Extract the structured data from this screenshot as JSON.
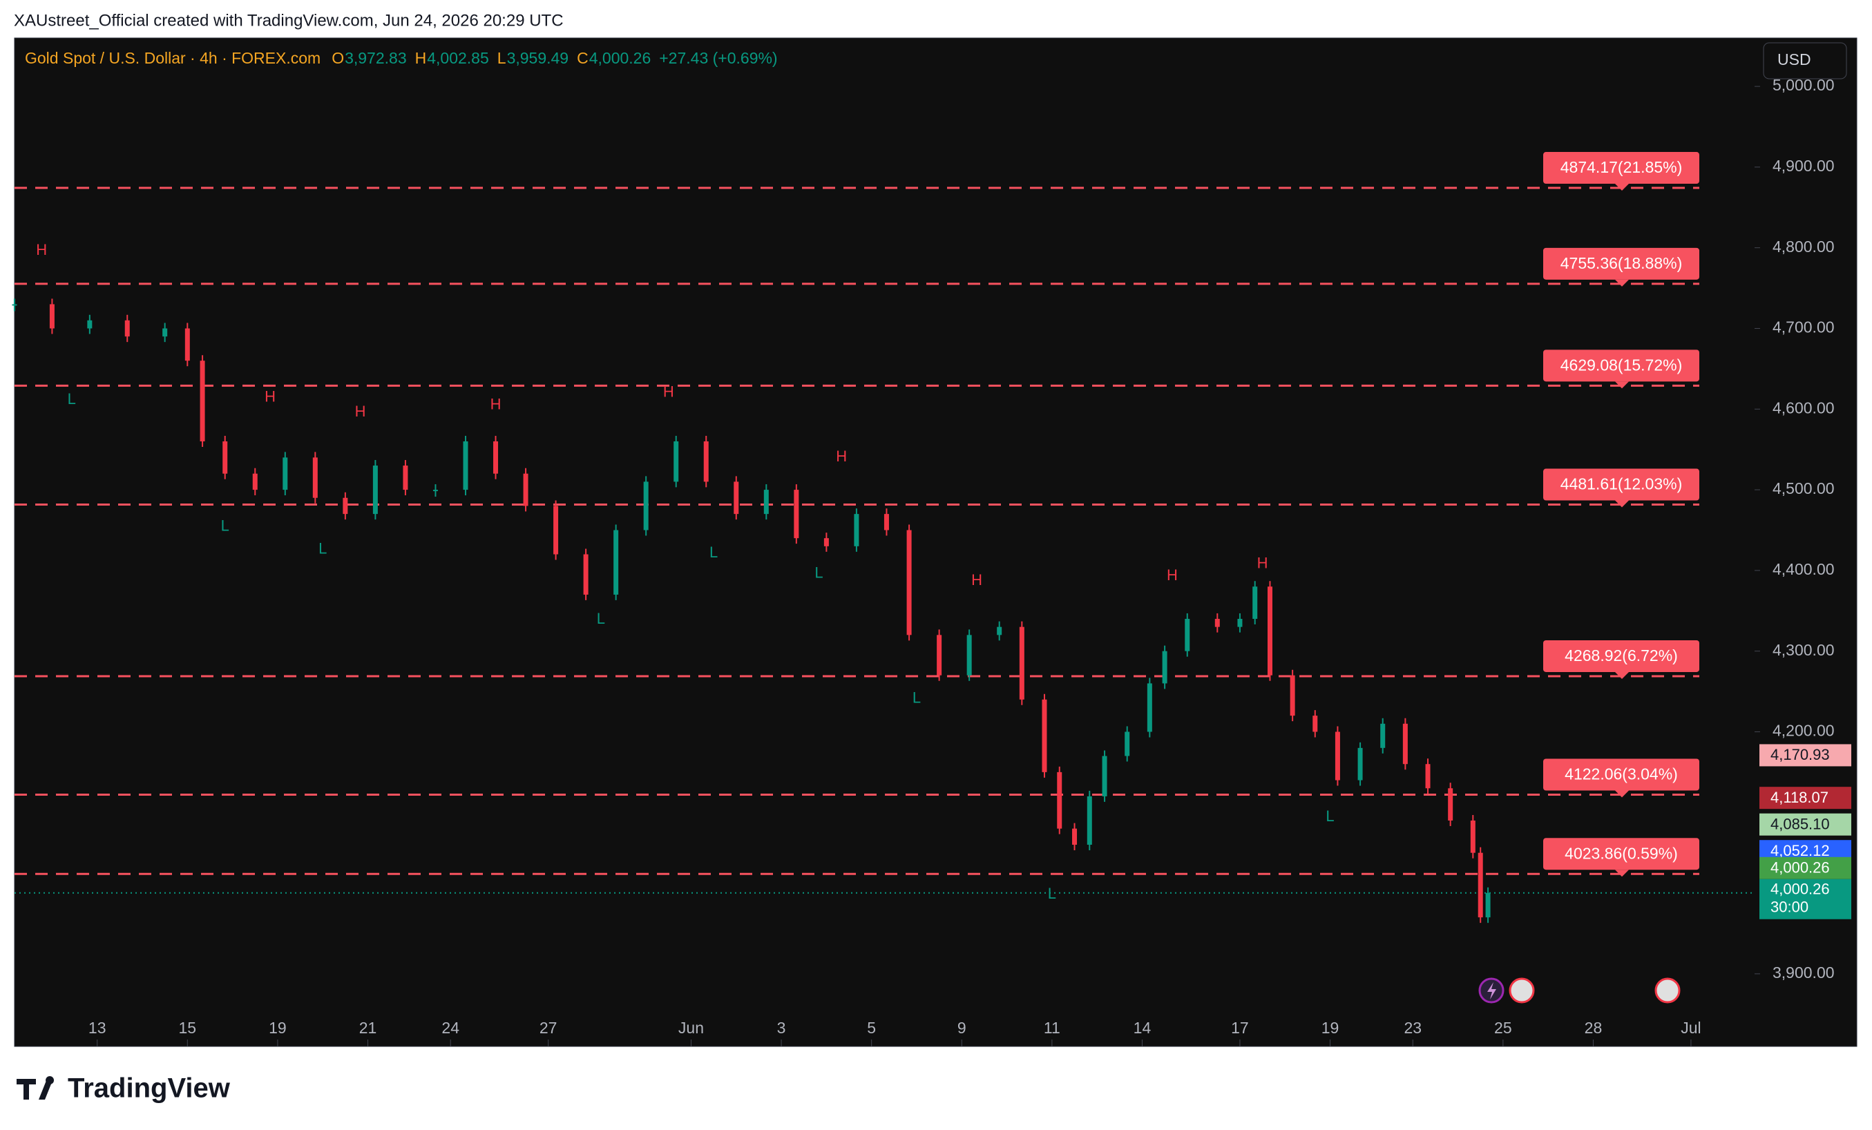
{
  "header": {
    "credit": "XAUstreet_Official created with TradingView.com, Jun 24, 2026 20:29 UTC"
  },
  "footer": {
    "brand": "TradingView"
  },
  "chart_data": {
    "type": "candlestick",
    "title": "Gold Spot / U.S. Dollar · 4h · FOREX.com",
    "currency": "USD",
    "legend": [
      {
        "key": "O",
        "value": {
          "value": 3972.83,
          "label": "3,972.83"
        }
      },
      {
        "key": "H",
        "value": {
          "value": 4002.85,
          "label": "4,002.85"
        }
      },
      {
        "key": "L",
        "value": {
          "value": 3959.49,
          "label": "3,959.49"
        }
      },
      {
        "key": "C",
        "value": {
          "value": 4000.26,
          "label": "4,000.26"
        }
      }
    ],
    "change": {
      "value": 27.43,
      "label": "+27.43 (+0.69%)"
    },
    "up_color": "#089981",
    "down_color": "#f23645",
    "x": [
      0,
      5,
      10,
      15,
      20,
      23,
      25,
      28,
      32,
      36,
      40,
      44,
      48,
      52,
      56,
      60,
      64,
      68,
      72,
      76,
      80,
      84,
      88,
      92,
      96,
      100,
      104,
      108,
      112,
      116,
      119,
      123,
      127,
      131,
      134,
      137,
      139,
      141,
      143,
      145,
      148,
      151,
      153,
      156,
      160,
      163,
      165,
      167,
      170,
      173,
      176,
      179,
      182,
      185,
      188,
      191,
      194,
      195,
      196
    ],
    "values": [
      4730,
      4700,
      4710,
      4690,
      4700,
      4660,
      4560,
      4520,
      4500,
      4540,
      4490,
      4470,
      4530,
      4500,
      4500,
      4560,
      4520,
      4480,
      4420,
      4370,
      4450,
      4510,
      4560,
      4510,
      4470,
      4500,
      4440,
      4430,
      4470,
      4450,
      4320,
      4270,
      4320,
      4330,
      4240,
      4150,
      4080,
      4060,
      4120,
      4170,
      4200,
      4260,
      4300,
      4340,
      4330,
      4340,
      4380,
      4270,
      4220,
      4200,
      4140,
      4180,
      4210,
      4160,
      4130,
      4090,
      4050,
      3970,
      4000.26
    ],
    "xlim": [
      0,
      231
    ],
    "xticks": [
      {
        "value": 11,
        "label": "13"
      },
      {
        "value": 23,
        "label": "15"
      },
      {
        "value": 35,
        "label": "19"
      },
      {
        "value": 47,
        "label": "21"
      },
      {
        "value": 58,
        "label": "24"
      },
      {
        "value": 71,
        "label": "27"
      },
      {
        "value": 90,
        "label": "Jun"
      },
      {
        "value": 102,
        "label": "3"
      },
      {
        "value": 114,
        "label": "5"
      },
      {
        "value": 126,
        "label": "9"
      },
      {
        "value": 138,
        "label": "11"
      },
      {
        "value": 150,
        "label": "14"
      },
      {
        "value": 163,
        "label": "17"
      },
      {
        "value": 175,
        "label": "19"
      },
      {
        "value": 186,
        "label": "23"
      },
      {
        "value": 198,
        "label": "25"
      },
      {
        "value": 210,
        "label": "28"
      },
      {
        "value": 223,
        "label": "Jul"
      }
    ],
    "ylim": [
      3810,
      5060
    ],
    "yticks": [
      {
        "value": 3900,
        "label": "3,900.00"
      },
      {
        "value": 4200,
        "label": "4,200.00"
      },
      {
        "value": 4300,
        "label": "4,300.00"
      },
      {
        "value": 4400,
        "label": "4,400.00"
      },
      {
        "value": 4500,
        "label": "4,500.00"
      },
      {
        "value": 4600,
        "label": "4,600.00"
      },
      {
        "value": 4700,
        "label": "4,700.00"
      },
      {
        "value": 4800,
        "label": "4,800.00"
      },
      {
        "value": 4900,
        "label": "4,900.00"
      },
      {
        "value": 5000,
        "label": "5,000.00"
      }
    ],
    "levels": [
      {
        "value": 4874.17,
        "label": "4874.17(21.85%)"
      },
      {
        "value": 4755.36,
        "label": "4755.36(18.88%)"
      },
      {
        "value": 4629.08,
        "label": "4629.08(15.72%)"
      },
      {
        "value": 4481.61,
        "label": "4481.61(12.03%)"
      },
      {
        "value": 4268.92,
        "label": "4268.92(6.72%)"
      },
      {
        "value": 4122.06,
        "label": "4122.06(3.04%)"
      },
      {
        "value": 4023.86,
        "label": "4023.86(0.59%)"
      }
    ],
    "level_color": "#f7525f",
    "price_badges": [
      {
        "value": 4170.93,
        "label": "4,170.93",
        "color": "#f7a9ae",
        "text_color": "#131722"
      },
      {
        "value": 4118.07,
        "label": "4,118.07",
        "color": "#b22833",
        "text_color": "#ffffff"
      },
      {
        "value": 4085.1,
        "label": "4,085.10",
        "color": "#a5d6a7",
        "text_color": "#131722"
      },
      {
        "value": 4052.12,
        "label": "4,052.12",
        "color": "#2962ff",
        "text_color": "#ffffff"
      },
      {
        "value": 4000.26,
        "label": "4,000.26",
        "color": "#43a047",
        "text_color": "#ffffff"
      }
    ],
    "last_price": {
      "value": 4000.26,
      "label": "4,000.26",
      "countdown": "30:00",
      "color": "#089981"
    },
    "markers": [
      {
        "text": "H",
        "x": 3.6,
        "y": 4796
      },
      {
        "text": "L",
        "x": 7.6,
        "y": 4611
      },
      {
        "text": "H",
        "x": 34,
        "y": 4614
      },
      {
        "text": "L",
        "x": 28,
        "y": 4454
      },
      {
        "text": "L",
        "x": 41,
        "y": 4426
      },
      {
        "text": "H",
        "x": 46,
        "y": 4596
      },
      {
        "text": "H",
        "x": 64,
        "y": 4605
      },
      {
        "text": "L",
        "x": 78,
        "y": 4339
      },
      {
        "text": "H",
        "x": 87,
        "y": 4620
      },
      {
        "text": "L",
        "x": 93,
        "y": 4421
      },
      {
        "text": "L",
        "x": 107,
        "y": 4396
      },
      {
        "text": "H",
        "x": 110,
        "y": 4540
      },
      {
        "text": "H",
        "x": 128,
        "y": 4387
      },
      {
        "text": "L",
        "x": 120,
        "y": 4241
      },
      {
        "text": "H",
        "x": 154,
        "y": 4393
      },
      {
        "text": "L",
        "x": 138,
        "y": 3998
      },
      {
        "text": "H",
        "x": 166,
        "y": 4408
      },
      {
        "text": "L",
        "x": 175,
        "y": 4094
      }
    ]
  }
}
